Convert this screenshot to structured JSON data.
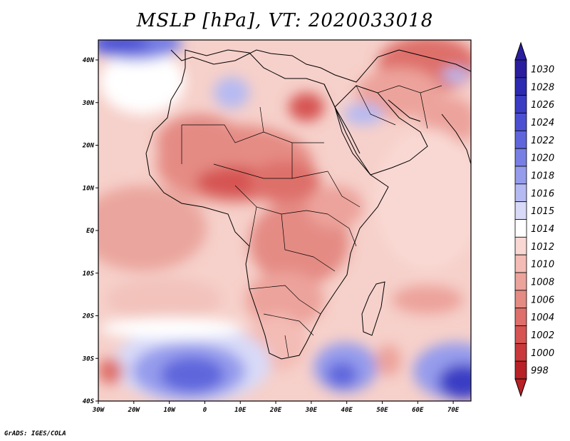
{
  "figure": {
    "title": "MSLP [hPa], VT: 2020033018",
    "credit": "GrADS: IGES/COLA"
  },
  "map": {
    "lon_range": [
      -30,
      75
    ],
    "lat_range": [
      -40,
      45
    ],
    "lon_ticks": [
      "30W",
      "20W",
      "10W",
      "0",
      "10E",
      "20E",
      "30E",
      "40E",
      "50E",
      "60E",
      "70E"
    ],
    "lat_ticks": [
      "40N",
      "30N",
      "20N",
      "10N",
      "EQ",
      "10S",
      "20S",
      "30S",
      "40S"
    ]
  },
  "colorbar": {
    "levels": [
      "1030",
      "1028",
      "1026",
      "1024",
      "1022",
      "1020",
      "1018",
      "1016",
      "1015",
      "1014",
      "1012",
      "1010",
      "1008",
      "1006",
      "1004",
      "1002",
      "1000",
      "998"
    ],
    "colors": [
      "#2a1e9e",
      "#2b2ab0",
      "#3a3cc4",
      "#4b50d2",
      "#5f66dc",
      "#787fe4",
      "#969cec",
      "#b6baf2",
      "#d8daf8",
      "#ffffff",
      "#f9d8d3",
      "#f3bcb5",
      "#eca39b",
      "#e48b84",
      "#de6f6a",
      "#d65452",
      "#c9383a",
      "#b82126"
    ]
  },
  "color_scale": {
    "high": "#2a1e9e",
    "neutral": "#ffffff",
    "low": "#b82126"
  }
}
